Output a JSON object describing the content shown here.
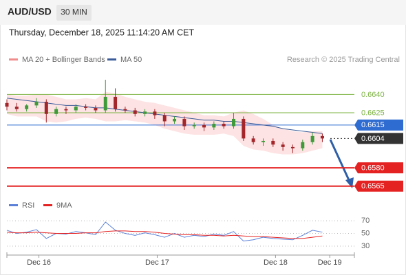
{
  "header": {
    "symbol": "AUD/USD",
    "timeframe": "30 MIN",
    "datetime": "Thursday, December 18, 2025 11:14:20 AM CET"
  },
  "chart_data": [
    {
      "type": "candlestick",
      "credit": "Research © 2025 Trading Central",
      "x": [
        0,
        2,
        4,
        6,
        8,
        10,
        12,
        14,
        16,
        18,
        20,
        22,
        24,
        26,
        28,
        30,
        32,
        34,
        36,
        38,
        40,
        42,
        44,
        46,
        48,
        50,
        52,
        54,
        56,
        58,
        60,
        62,
        64
      ],
      "open": [
        0.6633,
        0.663,
        0.6628,
        0.6631,
        0.6634,
        0.6624,
        0.6628,
        0.6627,
        0.663,
        0.6629,
        0.6627,
        0.6638,
        0.6628,
        0.6627,
        0.6624,
        0.6626,
        0.6623,
        0.6618,
        0.662,
        0.6614,
        0.6615,
        0.6613,
        0.6616,
        0.6614,
        0.662,
        0.6604,
        0.6601,
        0.6602,
        0.6599,
        0.6597,
        0.6596,
        0.6601,
        0.6606
      ],
      "high": [
        0.6636,
        0.6633,
        0.6632,
        0.6637,
        0.6636,
        0.663,
        0.663,
        0.6632,
        0.6632,
        0.6631,
        0.6652,
        0.6645,
        0.663,
        0.6629,
        0.6628,
        0.6628,
        0.6625,
        0.6622,
        0.6622,
        0.6617,
        0.6617,
        0.6618,
        0.6618,
        0.6625,
        0.6622,
        0.6606,
        0.6604,
        0.6604,
        0.6601,
        0.6599,
        0.6603,
        0.6609,
        0.6608
      ],
      "low": [
        0.6627,
        0.6626,
        0.6626,
        0.6629,
        0.6617,
        0.6622,
        0.6624,
        0.6625,
        0.6627,
        0.6625,
        0.6625,
        0.6626,
        0.6625,
        0.6622,
        0.6622,
        0.662,
        0.6614,
        0.6616,
        0.6611,
        0.6612,
        0.661,
        0.6611,
        0.6612,
        0.6612,
        0.6602,
        0.6599,
        0.6598,
        0.6597,
        0.6594,
        0.6592,
        0.6594,
        0.6599,
        0.6601
      ],
      "close": [
        0.663,
        0.6628,
        0.6631,
        0.6634,
        0.6624,
        0.6628,
        0.6627,
        0.663,
        0.6629,
        0.6627,
        0.6638,
        0.6628,
        0.6627,
        0.6624,
        0.6626,
        0.6623,
        0.6618,
        0.662,
        0.6614,
        0.6615,
        0.6613,
        0.6616,
        0.6614,
        0.662,
        0.6604,
        0.6601,
        0.6602,
        0.6599,
        0.6597,
        0.6596,
        0.6601,
        0.6606,
        0.6604
      ],
      "up_color": "#3f9a3a",
      "down_color": "#a3262b",
      "bands": {
        "name": "MA 20 + Bollinger Bands",
        "color": "#f08c8c",
        "fill": "#fde3e3",
        "upper": [
          0.664,
          0.6639,
          0.6639,
          0.664,
          0.664,
          0.6638,
          0.6636,
          0.6636,
          0.6637,
          0.6636,
          0.6642,
          0.6641,
          0.6638,
          0.6636,
          0.6634,
          0.6633,
          0.6631,
          0.6629,
          0.6627,
          0.6625,
          0.6623,
          0.6623,
          0.6622,
          0.6625,
          0.6627,
          0.6624,
          0.662,
          0.6615,
          0.6612,
          0.661,
          0.6609,
          0.661,
          0.661
        ],
        "lower": [
          0.6624,
          0.6622,
          0.6622,
          0.6622,
          0.6618,
          0.6617,
          0.6618,
          0.662,
          0.6621,
          0.662,
          0.6618,
          0.6618,
          0.6619,
          0.6618,
          0.6617,
          0.6615,
          0.6612,
          0.661,
          0.6608,
          0.6607,
          0.6607,
          0.6607,
          0.6608,
          0.6606,
          0.6598,
          0.6595,
          0.6594,
          0.6592,
          0.6591,
          0.6591,
          0.6592,
          0.6594,
          0.6596
        ]
      },
      "series": [
        {
          "name": "MA 50",
          "color": "#3a5a98",
          "values": [
            0.6637,
            0.6636,
            0.6635,
            0.6634,
            0.6633,
            0.6632,
            0.6631,
            0.6631,
            0.663,
            0.6629,
            0.6629,
            0.6628,
            0.6627,
            0.6626,
            0.6625,
            0.6624,
            0.6623,
            0.6622,
            0.6621,
            0.662,
            0.6619,
            0.6619,
            0.6618,
            0.6618,
            0.6617,
            0.6616,
            0.6615,
            0.6614,
            0.6612,
            0.6611,
            0.661,
            0.6609,
            0.6608
          ]
        }
      ],
      "levels": [
        {
          "value": 0.664,
          "label": "0.6640",
          "color": "#7cb342",
          "boxed": false,
          "width": 1
        },
        {
          "value": 0.6625,
          "label": "0.6625",
          "color": "#7cb342",
          "boxed": false,
          "width": 1
        },
        {
          "value": 0.6615,
          "label": "0.6615",
          "color": "#2f6cd1",
          "boxed": true,
          "width": 1
        },
        {
          "value": 0.6604,
          "label": "0.6604",
          "color": "#333333",
          "boxed": true,
          "width": 1,
          "dashed": true
        },
        {
          "value": 0.658,
          "label": "0.6580",
          "color": "#e52222",
          "boxed": true,
          "width": 2
        },
        {
          "value": 0.6565,
          "label": "0.6565",
          "color": "#e52222",
          "boxed": true,
          "width": 2
        }
      ],
      "xlim": [
        0,
        70.5
      ],
      "ylim": [
        0.6557,
        0.6661
      ]
    },
    {
      "type": "line",
      "x": [
        0,
        2,
        4,
        6,
        8,
        10,
        12,
        14,
        16,
        18,
        20,
        22,
        24,
        26,
        28,
        30,
        32,
        34,
        36,
        38,
        40,
        42,
        44,
        46,
        48,
        50,
        52,
        54,
        56,
        58,
        60,
        62,
        64
      ],
      "series": [
        {
          "name": "RSI",
          "color": "#5b80d8",
          "values": [
            55,
            50,
            52,
            56,
            42,
            50,
            49,
            53,
            51,
            48,
            68,
            55,
            50,
            47,
            51,
            48,
            44,
            50,
            44,
            47,
            45,
            49,
            47,
            53,
            38,
            40,
            44,
            42,
            41,
            40,
            47,
            55,
            52
          ]
        },
        {
          "name": "9MA",
          "color": "#e52222",
          "values": [
            52,
            51,
            51,
            52,
            51,
            50,
            50,
            50,
            51,
            51,
            53,
            54,
            54,
            53,
            53,
            52,
            50,
            49,
            48,
            48,
            47,
            47,
            46,
            47,
            46,
            45,
            45,
            44,
            43,
            42,
            42,
            44,
            46
          ]
        }
      ],
      "xlim": [
        0,
        70.5
      ],
      "ylim": [
        17,
        82
      ],
      "yticks": [
        70,
        50,
        30
      ],
      "xticks": [
        {
          "value": 6.5,
          "label": "Dec 16"
        },
        {
          "value": 30.5,
          "label": "Dec 17"
        },
        {
          "value": 54.5,
          "label": "Dec 18"
        },
        {
          "value": 65.5,
          "label": "Dec 19"
        }
      ]
    }
  ]
}
